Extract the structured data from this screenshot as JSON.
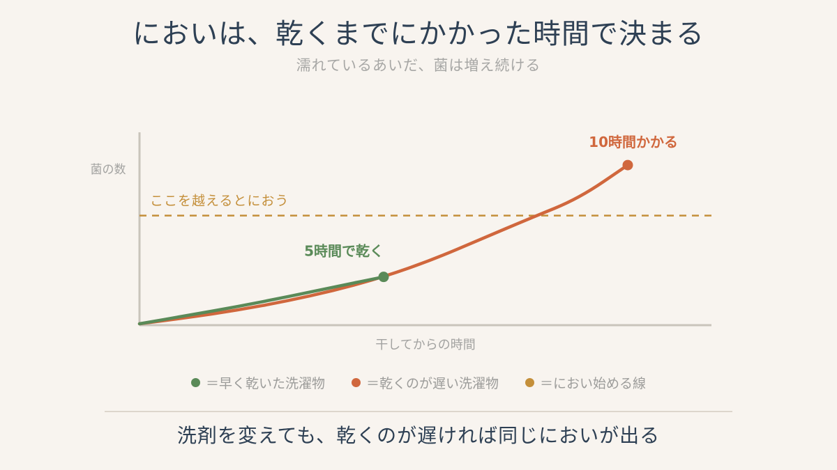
{
  "header": {
    "title": "においは、乾くまでにかかった時間で決まる",
    "subtitle": "濡れているあいだ、菌は増え続ける"
  },
  "chart_data": {
    "type": "line",
    "xlabel": "干してからの時間",
    "ylabel": "菌の数",
    "xlim": [
      0,
      10
    ],
    "ylim": [
      0,
      10
    ],
    "grid": false,
    "series": [
      {
        "name": "早く乾いた洗濯物",
        "color": "#5a8a58",
        "x": [
          0,
          1,
          2,
          3,
          4,
          5
        ],
        "y": [
          0,
          0.47,
          0.95,
          1.48,
          2.05,
          2.6
        ],
        "end_label": "5時間で乾く"
      },
      {
        "name": "乾くのが遅い洗濯物",
        "color": "#d0673d",
        "x": [
          0,
          1,
          2,
          3,
          4,
          5,
          6,
          7,
          8,
          9,
          10
        ],
        "y": [
          0,
          0.35,
          0.75,
          1.25,
          1.85,
          2.6,
          3.55,
          4.7,
          5.85,
          6.95,
          8.8
        ],
        "end_label": "10時間かかる"
      }
    ],
    "threshold": {
      "name": "におい始める線",
      "label": "ここを越えるとにおう",
      "y": 6.0,
      "color": "#c48f3a"
    }
  },
  "legend": {
    "items": [
      {
        "label": "＝早く乾いた洗濯物",
        "color": "#5a8a58"
      },
      {
        "label": "＝乾くのが遅い洗濯物",
        "color": "#d0673d"
      },
      {
        "label": "＝におい始める線",
        "color": "#c48f3a"
      }
    ]
  },
  "footer": {
    "text": "洗剤を変えても、乾くのが遅ければ同じにおいが出る"
  }
}
